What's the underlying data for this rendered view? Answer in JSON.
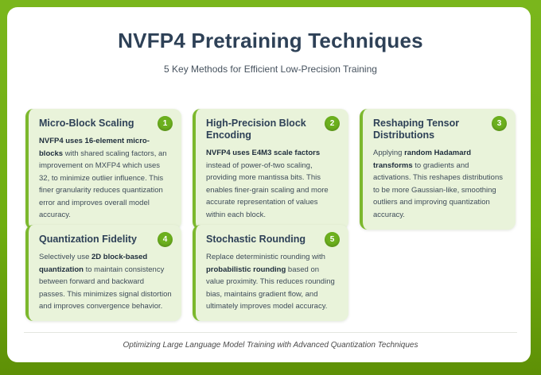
{
  "page": {
    "title": "NVFP4 Pretraining Techniques",
    "subtitle": "5 Key Methods for Efficient Low-Precision Training",
    "footer": "Optimizing Large Language Model Training with Advanced Quantization Techniques"
  },
  "colors": {
    "frame_green_top": "#7ab61c",
    "frame_green_bottom": "#5e9006",
    "card_background": "#e9f3da",
    "card_accent_border": "#7cb82d",
    "badge_green": "#6cb01e",
    "heading_navy": "#2e4157",
    "body_text": "#3e4c59"
  },
  "cards": [
    {
      "number": "1",
      "title": "Micro-Block Scaling",
      "body": [
        "NVFP4 uses 16-element micro-blocks",
        " with shared scaling factors, an improvement on MXFP4 which uses 32, to minimize outlier influence. This finer granularity reduces quantization error and improves overall model accuracy."
      ]
    },
    {
      "number": "2",
      "title": "High-Precision Block Encoding",
      "body": [
        "NVFP4 uses E4M3 scale factors",
        " instead of power-of-two scaling, providing more mantissa bits. This enables finer-grain scaling and more accurate representation of values within each block."
      ]
    },
    {
      "number": "3",
      "title": "Reshaping Tensor Distributions",
      "body": [
        "Applying ",
        "random Hadamard transforms",
        " to gradients and activations. This reshapes distributions to be more Gaussian-like, smoothing outliers and improving quantization accuracy."
      ]
    },
    {
      "number": "4",
      "title": "Quantization Fidelity",
      "body": [
        "Selectively use ",
        "2D block-based quantization",
        " to maintain consistency between forward and backward passes. This minimizes signal distortion and improves convergence behavior."
      ]
    },
    {
      "number": "5",
      "title": "Stochastic Rounding",
      "body": [
        "Replace deterministic rounding with ",
        "probabilistic rounding",
        " based on value proximity. This reduces rounding bias, maintains gradient flow, and ultimately improves model accuracy."
      ]
    }
  ]
}
